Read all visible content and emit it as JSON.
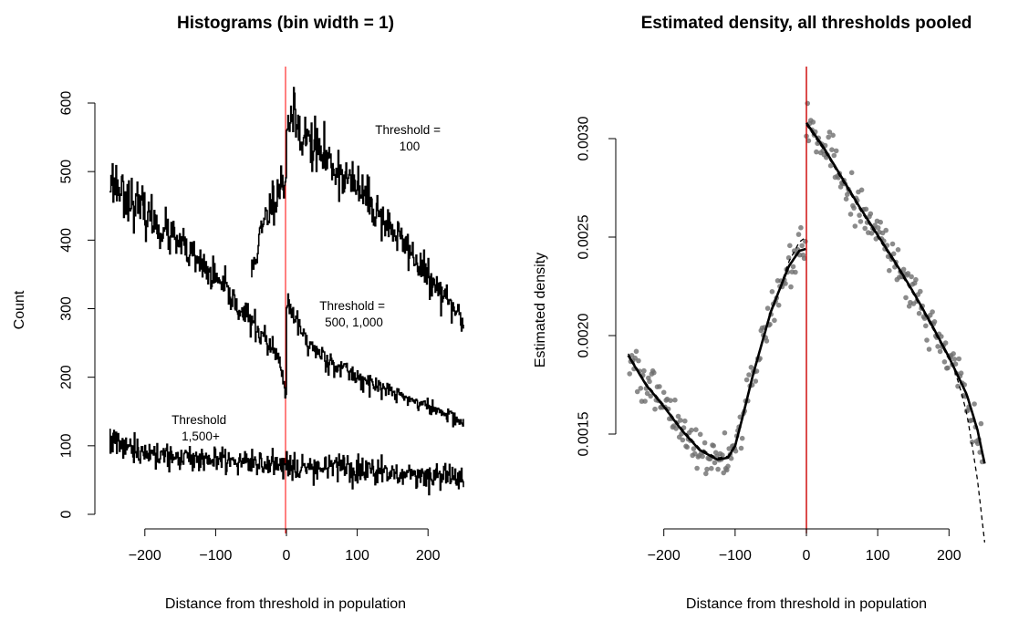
{
  "chart_data": [
    {
      "type": "line",
      "title": "Histograms (bin width = 1)",
      "xlabel": "Distance from threshold in population",
      "ylabel": "Count",
      "xlim": [
        -250,
        250
      ],
      "ylim": [
        0,
        620
      ],
      "x_ticks": [
        "−200",
        "−100",
        "0",
        "100",
        "200"
      ],
      "x_tick_values": [
        -200,
        -100,
        0,
        100,
        200
      ],
      "y_ticks": [
        "0",
        "100",
        "200",
        "300",
        "400",
        "500",
        "600"
      ],
      "y_tick_values": [
        0,
        100,
        200,
        300,
        400,
        500,
        600
      ],
      "vertical_line": {
        "x": 0,
        "color": "#ff0000"
      },
      "annotations": [
        {
          "text": [
            "Threshold =",
            "100"
          ],
          "series": 0
        },
        {
          "text": [
            "Threshold =",
            "500, 1,000"
          ],
          "series": 1
        },
        {
          "text": [
            "Threshold",
            "1,500+"
          ],
          "series": 2
        }
      ],
      "series": [
        {
          "color": "#000000",
          "x": [
            -50,
            -40,
            -30,
            -20,
            -10,
            -1,
            0,
            10,
            20,
            30,
            40,
            50,
            60,
            70,
            80,
            90,
            100,
            110,
            120,
            130,
            140,
            150,
            160,
            170,
            180,
            190,
            200,
            210,
            220,
            230,
            240,
            250
          ],
          "values": [
            350,
            395,
            430,
            460,
            480,
            490,
            580,
            575,
            560,
            545,
            535,
            525,
            515,
            505,
            495,
            485,
            475,
            465,
            450,
            440,
            425,
            415,
            400,
            390,
            375,
            360,
            345,
            330,
            320,
            305,
            295,
            280
          ]
        },
        {
          "color": "#000000",
          "x": [
            -250,
            -230,
            -210,
            -190,
            -170,
            -150,
            -130,
            -110,
            -90,
            -70,
            -50,
            -30,
            -10,
            -1,
            0,
            10,
            20,
            30,
            40,
            50,
            60,
            70,
            80,
            90,
            100,
            120,
            140,
            160,
            180,
            200,
            220,
            240,
            250
          ],
          "values": [
            490,
            470,
            448,
            430,
            410,
            392,
            372,
            352,
            330,
            305,
            280,
            255,
            222,
            172,
            300,
            290,
            268,
            250,
            240,
            232,
            224,
            218,
            212,
            206,
            200,
            190,
            182,
            174,
            165,
            157,
            148,
            140,
            130
          ]
        },
        {
          "color": "#000000",
          "x": [
            -250,
            -200,
            -150,
            -100,
            -50,
            0,
            50,
            100,
            150,
            200,
            250
          ],
          "values": [
            105,
            90,
            84,
            80,
            77,
            73,
            70,
            66,
            62,
            58,
            52
          ]
        }
      ]
    },
    {
      "type": "scatter",
      "title": "Estimated density, all thresholds pooled",
      "xlabel": "Distance from threshold in population",
      "ylabel": "Estimated density",
      "xlim": [
        -250,
        250
      ],
      "ylim": [
        0.00118,
        0.00328
      ],
      "x_ticks": [
        "−200",
        "−100",
        "0",
        "100",
        "200"
      ],
      "x_tick_values": [
        -200,
        -100,
        0,
        100,
        200
      ],
      "y_ticks": [
        "0.0015",
        "0.0020",
        "0.0025",
        "0.0030"
      ],
      "y_tick_values": [
        0.0015,
        0.002,
        0.0025,
        0.003
      ],
      "vertical_line": {
        "x": 0,
        "color": "#cc0000"
      },
      "point_color": "#6e6e6e",
      "fit_left": {
        "x": [
          -250,
          -225,
          -200,
          -175,
          -150,
          -125,
          -110,
          -100,
          -90,
          -75,
          -50,
          -25,
          -10,
          -1
        ],
        "values": [
          0.0019,
          0.00175,
          0.00164,
          0.00152,
          0.00142,
          0.00137,
          0.00138,
          0.00144,
          0.00158,
          0.0018,
          0.00212,
          0.00235,
          0.00243,
          0.00244
        ]
      },
      "fit_right": {
        "x": [
          0,
          25,
          50,
          75,
          100,
          125,
          150,
          175,
          200,
          225,
          240,
          250
        ],
        "values": [
          0.00308,
          0.00295,
          0.0028,
          0.00265,
          0.00251,
          0.00237,
          0.00222,
          0.00206,
          0.00189,
          0.0017,
          0.00152,
          0.00135
        ]
      }
    }
  ]
}
